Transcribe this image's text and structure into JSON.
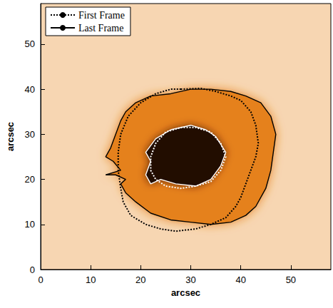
{
  "chart_data": {
    "type": "line",
    "xlabel": "arcsec",
    "ylabel": "arcsec",
    "xlim": [
      0,
      58
    ],
    "ylim": [
      0,
      59
    ],
    "xticks": [
      0,
      10,
      20,
      30,
      40,
      50
    ],
    "yticks": [
      0,
      10,
      20,
      30,
      40,
      50
    ],
    "legend": "upper left",
    "series": [
      {
        "name": "First Frame",
        "line_style": "dotted",
        "contours": [
          {
            "color": "#000000",
            "x": [
              28,
              32,
              35,
              38,
              40,
              42,
              43,
              43.5,
              43,
              42,
              41,
              40,
              39,
              37,
              34,
              31,
              27,
              24,
              21,
              18,
              16.5,
              16,
              15.5,
              15.5,
              16,
              17.5,
              20,
              23,
              26
            ],
            "y": [
              40,
              40.2,
              39.5,
              38.5,
              37.5,
              35,
              32,
              28,
              25,
              22,
              19,
              16,
              14,
              11.5,
              10,
              9,
              8.5,
              9,
              10,
              12,
              15,
              18,
              22,
              26,
              30,
              34,
              37,
              39,
              40
            ]
          },
          {
            "color": "#ffffff",
            "x": [
              28,
              31,
              34,
              36,
              37,
              36,
              34,
              31,
              28,
              25,
              23,
              22,
              22,
              23,
              25
            ],
            "y": [
              31.5,
              31.5,
              30.5,
              28,
              25,
              22,
              19.5,
              18.5,
              18,
              18.5,
              20,
              22,
              25,
              28,
              30.5
            ]
          }
        ]
      },
      {
        "name": "Last Frame",
        "line_style": "solid",
        "contours": [
          {
            "color": "#000000",
            "x": [
              26,
              30,
              34,
              38,
              41,
              44,
              46,
              47,
              46.5,
              46,
              45,
              43,
              41,
              38,
              34,
              30,
              26,
              22,
              19,
              17,
              16,
              17,
              15,
              13,
              16,
              14.5,
              13,
              14,
              15,
              16,
              17,
              19,
              22
            ],
            "y": [
              39,
              40,
              40,
              39.5,
              38.5,
              37,
              34,
              30,
              26,
              22,
              18,
              14,
              12,
              10.5,
              10,
              10.5,
              11,
              12.5,
              15,
              17,
              19,
              20,
              21,
              21,
              22,
              24,
              25,
              27,
              30,
              33,
              35,
              37,
              38.5
            ]
          },
          {
            "color": "#ffffff",
            "x": [
              26,
              30,
              33,
              35,
              37,
              36,
              34,
              31,
              27,
              24,
              22,
              21,
              22,
              21,
              23
            ],
            "y": [
              31,
              32,
              31,
              29.5,
              26,
              23,
              20,
              18.5,
              19,
              20,
              19,
              21,
              24,
              26,
              29
            ]
          }
        ]
      }
    ]
  }
}
